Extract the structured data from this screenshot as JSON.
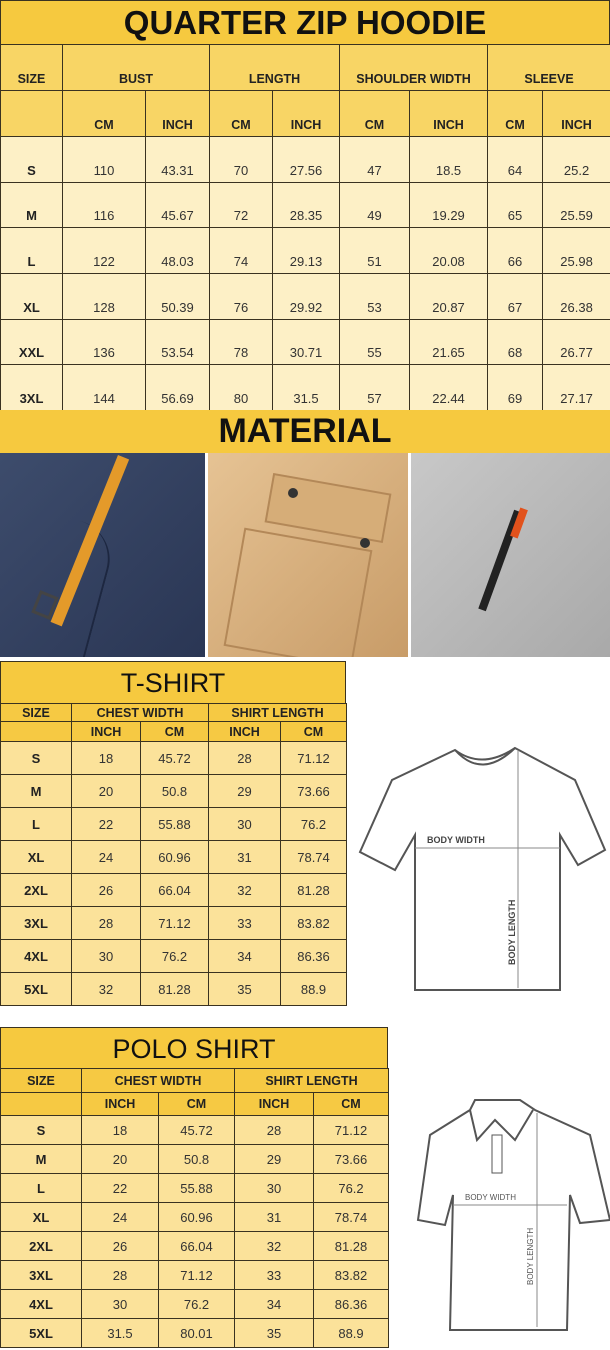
{
  "hoodie": {
    "title": "QUARTER ZIP HOODIE",
    "headers": [
      "SIZE",
      "BUST",
      "LENGTH",
      "SHOULDER WIDTH",
      "SLEEVE"
    ],
    "subheaders": [
      "CM",
      "INCH",
      "CM",
      "INCH",
      "CM",
      "INCH",
      "CM",
      "INCH"
    ],
    "rows": [
      [
        "S",
        "110",
        "43.31",
        "70",
        "27.56",
        "47",
        "18.5",
        "64",
        "25.2"
      ],
      [
        "M",
        "116",
        "45.67",
        "72",
        "28.35",
        "49",
        "19.29",
        "65",
        "25.59"
      ],
      [
        "L",
        "122",
        "48.03",
        "74",
        "29.13",
        "51",
        "20.08",
        "66",
        "25.98"
      ],
      [
        "XL",
        "128",
        "50.39",
        "76",
        "29.92",
        "53",
        "20.87",
        "67",
        "26.38"
      ],
      [
        "XXL",
        "136",
        "53.54",
        "78",
        "30.71",
        "55",
        "21.65",
        "68",
        "26.77"
      ],
      [
        "3XL",
        "144",
        "56.69",
        "80",
        "31.5",
        "57",
        "22.44",
        "69",
        "27.17"
      ]
    ]
  },
  "material": {
    "title": "MATERIAL",
    "photos": [
      "navy-fabric-zipper-pull",
      "tan-fabric-flap-pocket",
      "grey-fabric-zip-pocket"
    ]
  },
  "tshirt": {
    "title": "T-SHIRT",
    "headers": [
      "SIZE",
      "CHEST WIDTH",
      "SHIRT LENGTH"
    ],
    "subheaders": [
      "INCH",
      "CM",
      "INCH",
      "CM"
    ],
    "rows": [
      [
        "S",
        "18",
        "45.72",
        "28",
        "71.12"
      ],
      [
        "M",
        "20",
        "50.8",
        "29",
        "73.66"
      ],
      [
        "L",
        "22",
        "55.88",
        "30",
        "76.2"
      ],
      [
        "XL",
        "24",
        "60.96",
        "31",
        "78.74"
      ],
      [
        "2XL",
        "26",
        "66.04",
        "32",
        "81.28"
      ],
      [
        "3XL",
        "28",
        "71.12",
        "33",
        "83.82"
      ],
      [
        "4XL",
        "30",
        "76.2",
        "34",
        "86.36"
      ],
      [
        "5XL",
        "32",
        "81.28",
        "35",
        "88.9"
      ]
    ],
    "diagram": {
      "width_label": "BODY WIDTH",
      "length_label": "BODY LENGTH"
    }
  },
  "polo": {
    "title": "POLO SHIRT",
    "headers": [
      "SIZE",
      "CHEST WIDTH",
      "SHIRT LENGTH"
    ],
    "subheaders": [
      "INCH",
      "CM",
      "INCH",
      "CM"
    ],
    "rows": [
      [
        "S",
        "18",
        "45.72",
        "28",
        "71.12"
      ],
      [
        "M",
        "20",
        "50.8",
        "29",
        "73.66"
      ],
      [
        "L",
        "22",
        "55.88",
        "30",
        "76.2"
      ],
      [
        "XL",
        "24",
        "60.96",
        "31",
        "78.74"
      ],
      [
        "2XL",
        "26",
        "66.04",
        "32",
        "81.28"
      ],
      [
        "3XL",
        "28",
        "71.12",
        "33",
        "83.82"
      ],
      [
        "4XL",
        "30",
        "76.2",
        "34",
        "86.36"
      ],
      [
        "5XL",
        "31.5",
        "80.01",
        "35",
        "88.9"
      ]
    ],
    "diagram": {
      "width_label": "BODY WIDTH",
      "length_label": "BODY LENGTH"
    }
  },
  "colors": {
    "title_yellow": "#f6c93f",
    "header_yellow": "#f8d565",
    "cell_cream": "#fdf0c6"
  }
}
